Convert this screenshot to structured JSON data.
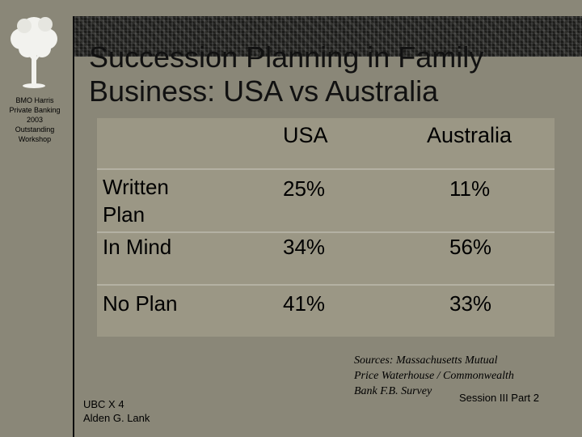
{
  "sidebar": {
    "org_text": "BMO Harris\nPrivate Banking\n2003\nOutstanding\nWorkshop"
  },
  "slide": {
    "title": "Succession Planning in Family Business: USA vs Australia"
  },
  "table": {
    "headers": [
      "",
      "USA",
      "Australia"
    ],
    "rows": [
      {
        "label": "Written Plan",
        "usa": "25%",
        "australia": "11%"
      },
      {
        "label": "In Mind",
        "usa": "34%",
        "australia": "56%"
      },
      {
        "label": "No Plan",
        "usa": "41%",
        "australia": "33%"
      }
    ]
  },
  "footer": {
    "sources": "Sources: Massachusetts Mutual\nPrice Waterhouse / Commonwealth\nBank F.B. Survey",
    "session": "Session III Part 2",
    "presenter": "UBC X 4\nAlden G. Lank"
  },
  "colors": {
    "background": "#8a8778",
    "table_background": "#9b9785",
    "header_band": "#1c1c1a"
  }
}
